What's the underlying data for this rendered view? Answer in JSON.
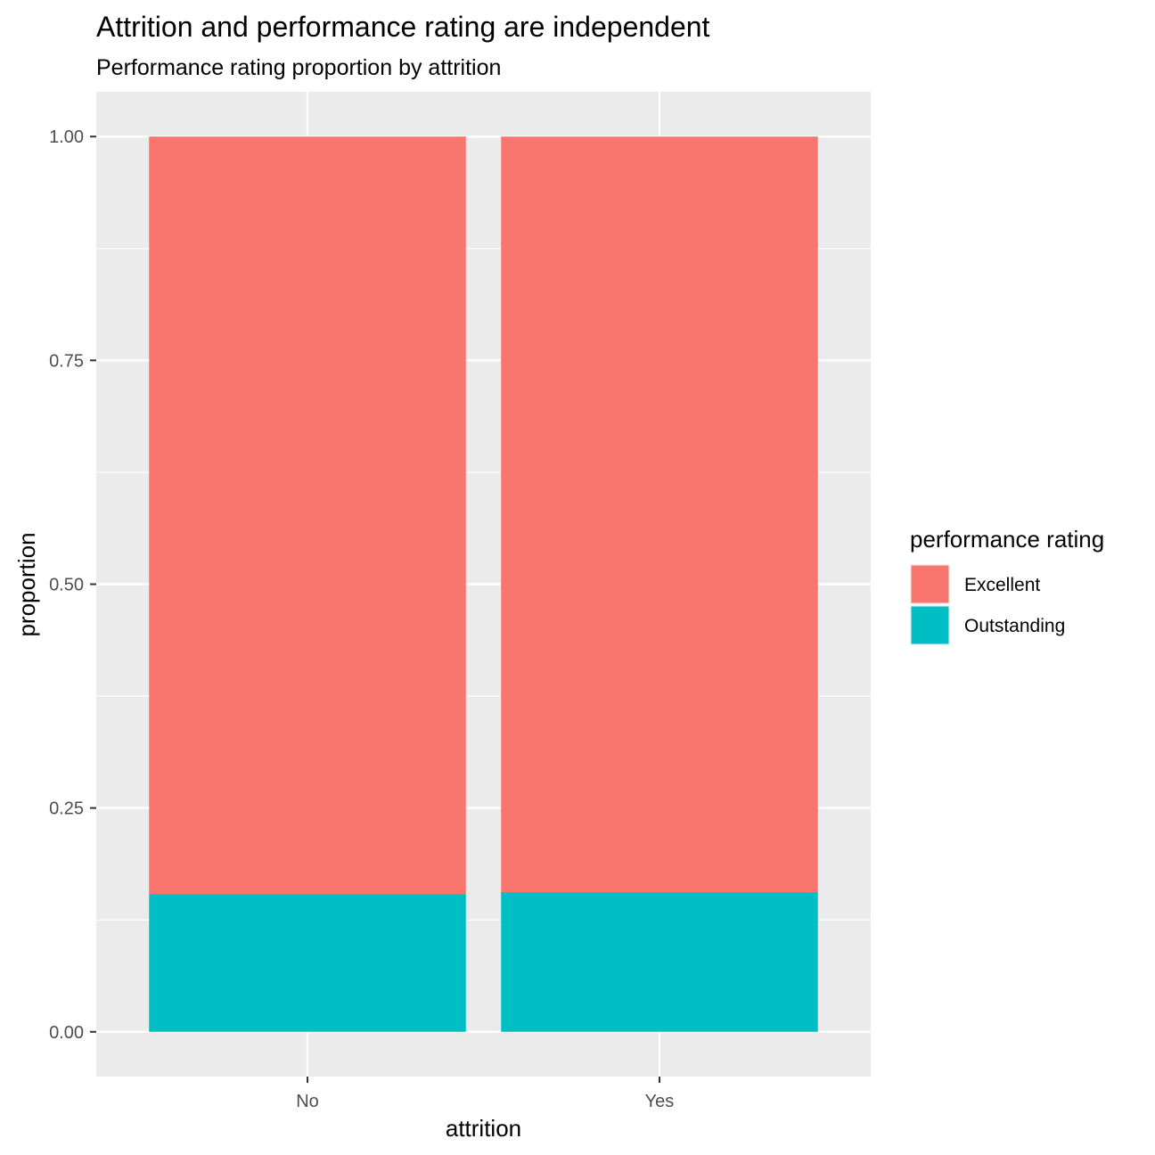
{
  "chart_data": {
    "type": "bar",
    "stacked": true,
    "title": "Attrition and performance rating are independent",
    "subtitle": "Performance rating proportion by attrition",
    "xlabel": "attrition",
    "ylabel": "proportion",
    "categories": [
      "No",
      "Yes"
    ],
    "series": [
      {
        "name": "Outstanding",
        "color": "#00BFC4",
        "values": [
          0.154,
          0.156
        ]
      },
      {
        "name": "Excellent",
        "color": "#F8766D",
        "values": [
          0.846,
          0.844
        ]
      }
    ],
    "ylim": [
      -0.05,
      1.05
    ],
    "yticks": [
      0.0,
      0.25,
      0.5,
      0.75,
      1.0
    ],
    "ytick_labels": [
      "0.00",
      "0.25",
      "0.50",
      "0.75",
      "1.00"
    ],
    "grid": true,
    "panel_background": "#EBEBEB",
    "legend": {
      "title": "performance rating",
      "placement": "right",
      "items": [
        {
          "label": "Excellent",
          "color": "#F8766D"
        },
        {
          "label": "Outstanding",
          "color": "#00BFC4"
        }
      ]
    }
  }
}
